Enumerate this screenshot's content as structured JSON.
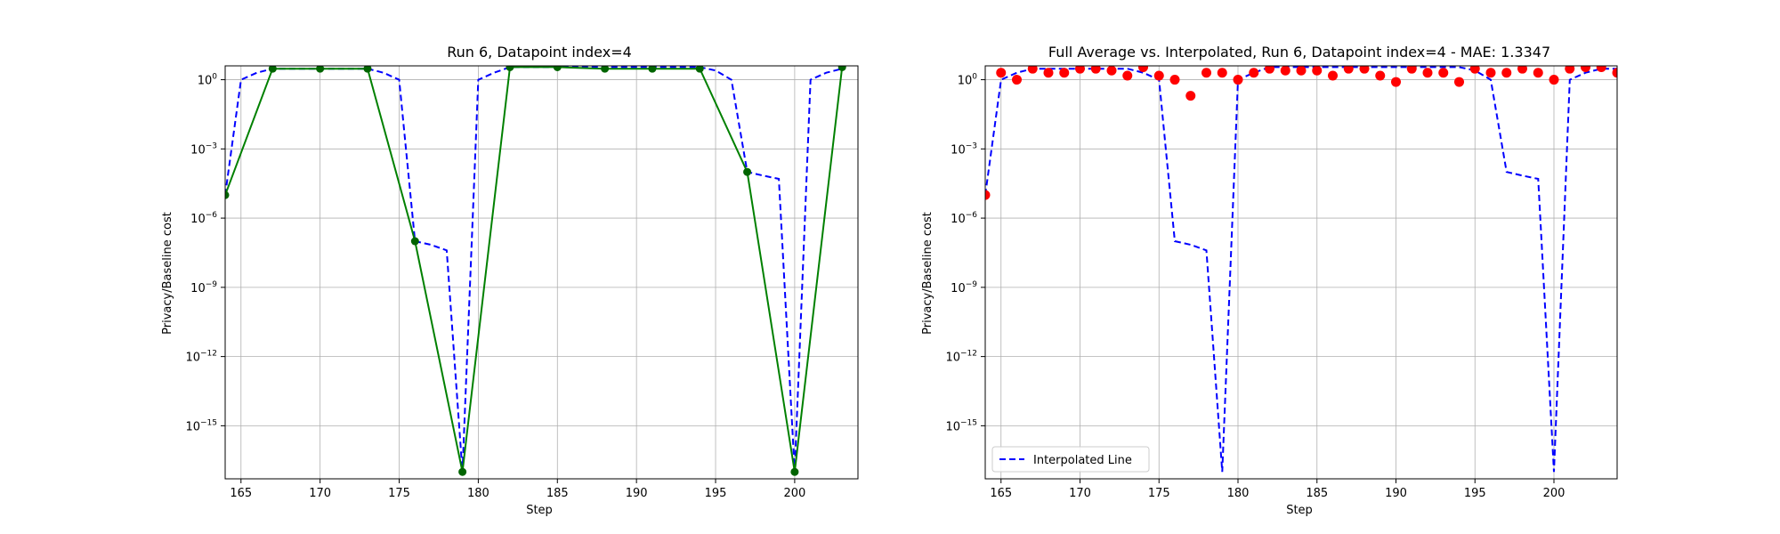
{
  "chart_data": [
    {
      "type": "line",
      "title": "Run 6, Datapoint index=4",
      "xlabel": "Step",
      "ylabel": "Privacy/Baseline cost",
      "yscale": "log",
      "xlim": [
        164,
        204
      ],
      "ylim_exponent": [
        -17.3,
        0.6
      ],
      "grid": true,
      "x_ticks": [
        165,
        170,
        175,
        180,
        185,
        190,
        195,
        200
      ],
      "y_ticks": [
        {
          "exp": 0,
          "base": "10",
          "sup": "0"
        },
        {
          "exp": -3,
          "base": "10",
          "sup": "−3"
        },
        {
          "exp": -6,
          "base": "10",
          "sup": "−6"
        },
        {
          "exp": -9,
          "base": "10",
          "sup": "−9"
        },
        {
          "exp": -12,
          "base": "10",
          "sup": "−12"
        },
        {
          "exp": -15,
          "base": "10",
          "sup": "−15"
        }
      ],
      "series": [
        {
          "style": "dashed",
          "color": "#0000ff",
          "x": [
            164,
            165,
            166,
            167,
            168,
            169,
            170,
            171,
            172,
            173,
            174,
            175,
            176,
            177,
            178,
            179,
            180,
            181,
            182,
            183,
            184,
            185,
            186,
            187,
            188,
            189,
            190,
            191,
            192,
            193,
            194,
            195,
            196,
            197,
            198,
            199,
            200,
            201,
            202,
            203
          ],
          "y": [
            1e-05,
            1.0,
            2.0,
            3.0,
            3.0,
            3.0,
            3.0,
            3.0,
            3.0,
            3.0,
            2.0,
            1.0,
            1e-07,
            7e-08,
            4e-08,
            1e-17,
            1.0,
            2.0,
            3.5,
            3.5,
            3.5,
            3.5,
            3.5,
            3.5,
            3.5,
            3.5,
            3.5,
            3.5,
            3.5,
            3.5,
            3.5,
            2.5,
            1.0,
            0.0001,
            7e-05,
            5e-05,
            1e-17,
            1.0,
            2.0,
            3.0
          ]
        },
        {
          "style": "solid-markers",
          "color": "#008000",
          "marker_color": "#006400",
          "x": [
            164,
            167,
            170,
            173,
            176,
            179,
            182,
            185,
            188,
            191,
            194,
            197,
            200,
            203
          ],
          "y": [
            1e-05,
            3.0,
            3.0,
            3.0,
            1e-07,
            1e-17,
            3.5,
            3.5,
            3.0,
            3.0,
            3.0,
            0.0001,
            1e-17,
            3.5
          ]
        }
      ]
    },
    {
      "type": "line",
      "title": "Full Average vs. Interpolated, Run 6, Datapoint index=4 - MAE: 1.3347",
      "xlabel": "Step",
      "ylabel": "Privacy/Baseline cost",
      "yscale": "log",
      "xlim": [
        164,
        204
      ],
      "ylim_exponent": [
        -17.3,
        0.6
      ],
      "grid": true,
      "legend_position": "lower-left",
      "x_ticks": [
        165,
        170,
        175,
        180,
        185,
        190,
        195,
        200
      ],
      "y_ticks": [
        {
          "exp": 0,
          "base": "10",
          "sup": "0"
        },
        {
          "exp": -3,
          "base": "10",
          "sup": "−3"
        },
        {
          "exp": -6,
          "base": "10",
          "sup": "−6"
        },
        {
          "exp": -9,
          "base": "10",
          "sup": "−9"
        },
        {
          "exp": -12,
          "base": "10",
          "sup": "−12"
        },
        {
          "exp": -15,
          "base": "10",
          "sup": "−15"
        }
      ],
      "series": [
        {
          "name": "Interpolated Line",
          "style": "dashed",
          "color": "#0000ff",
          "x": [
            164,
            165,
            166,
            167,
            168,
            169,
            170,
            171,
            172,
            173,
            174,
            175,
            176,
            177,
            178,
            179,
            180,
            181,
            182,
            183,
            184,
            185,
            186,
            187,
            188,
            189,
            190,
            191,
            192,
            193,
            194,
            195,
            196,
            197,
            198,
            199,
            200,
            201,
            202,
            203,
            204
          ],
          "y": [
            1e-05,
            1.0,
            2.0,
            3.0,
            3.0,
            3.0,
            3.0,
            3.0,
            3.0,
            3.0,
            2.0,
            1.0,
            1e-07,
            7e-08,
            4e-08,
            1e-17,
            1.0,
            2.0,
            3.5,
            3.5,
            3.5,
            3.5,
            3.5,
            3.5,
            3.5,
            3.5,
            3.5,
            3.5,
            3.5,
            3.5,
            3.5,
            2.5,
            1.0,
            0.0001,
            7e-05,
            5e-05,
            1e-17,
            1.0,
            2.0,
            3.0,
            3.0
          ]
        },
        {
          "style": "scatter",
          "color": "#ff0000",
          "x": [
            164,
            165,
            166,
            167,
            168,
            169,
            170,
            171,
            172,
            173,
            174,
            175,
            176,
            177,
            178,
            179,
            180,
            181,
            182,
            183,
            184,
            185,
            186,
            187,
            188,
            189,
            190,
            191,
            192,
            193,
            194,
            195,
            196,
            197,
            198,
            199,
            200,
            201,
            202,
            203,
            204
          ],
          "y": [
            1e-05,
            2.0,
            1.0,
            3.0,
            2.0,
            2.0,
            3.0,
            3.0,
            2.5,
            1.5,
            3.5,
            1.5,
            1.0,
            0.2,
            2.0,
            2.0,
            1.0,
            2.0,
            3.0,
            2.5,
            2.5,
            2.5,
            1.5,
            3.0,
            3.0,
            1.5,
            0.8,
            3.0,
            2.0,
            2.0,
            0.8,
            3.0,
            2.0,
            2.0,
            3.0,
            2.0,
            1.0,
            3.0,
            3.5,
            3.5,
            2.0
          ]
        }
      ]
    }
  ]
}
